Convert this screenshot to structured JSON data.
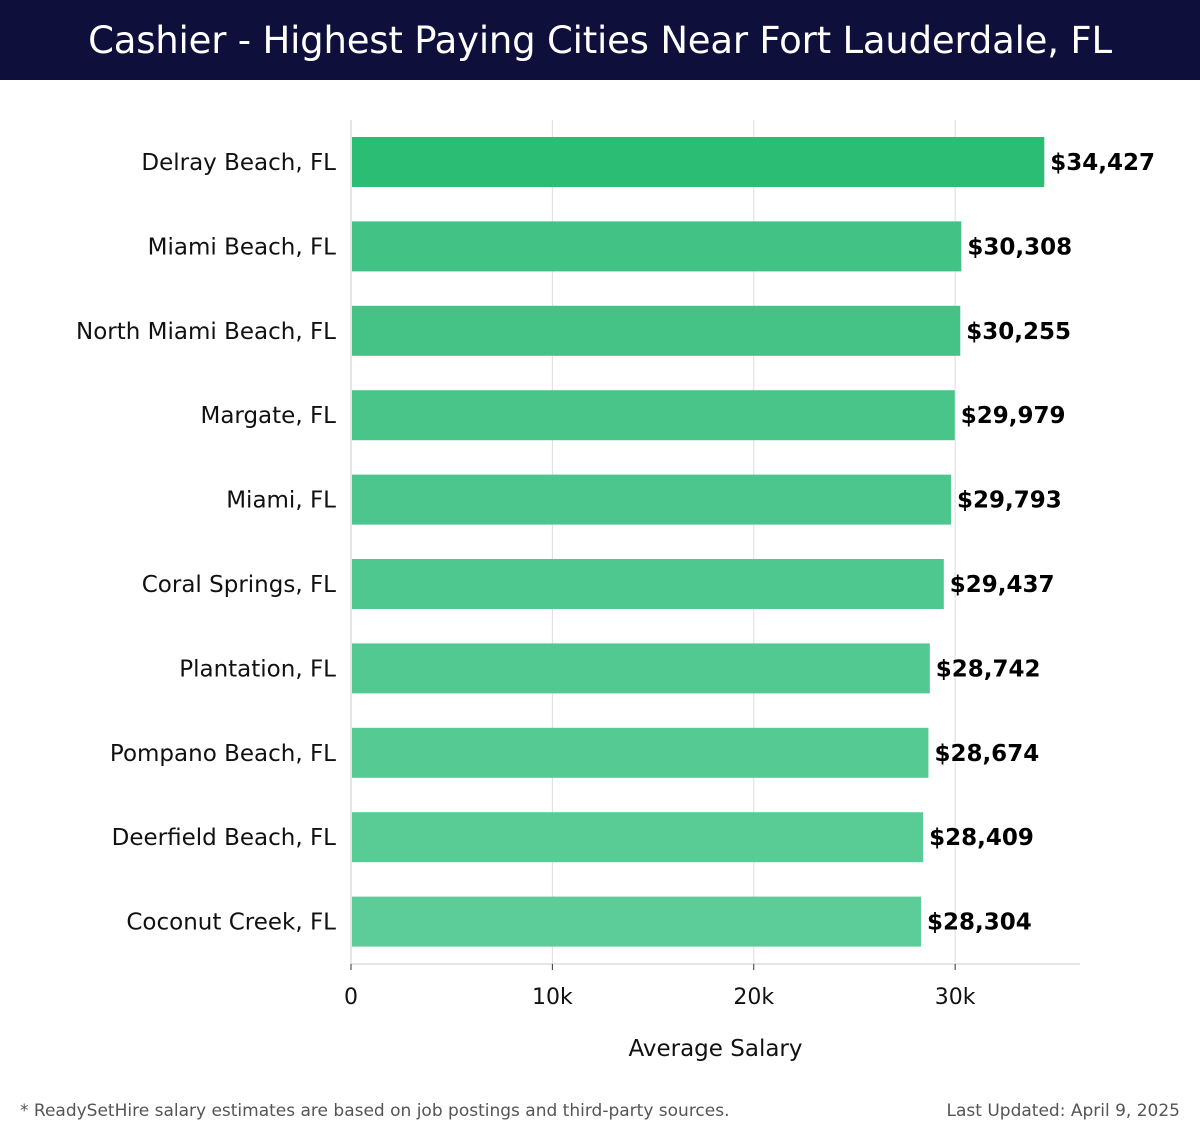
{
  "header": {
    "title": "Cashier - Highest Paying Cities Near Fort Lauderdale, FL"
  },
  "chart_data": {
    "type": "bar",
    "orientation": "horizontal",
    "categories": [
      "Delray Beach, FL",
      "Miami Beach, FL",
      "North Miami Beach, FL",
      "Margate, FL",
      "Miami, FL",
      "Coral Springs, FL",
      "Plantation, FL",
      "Pompano Beach, FL",
      "Deerfield Beach, FL",
      "Coconut Creek, FL"
    ],
    "values": [
      34427,
      30308,
      30255,
      29979,
      29793,
      29437,
      28742,
      28674,
      28409,
      28304
    ],
    "value_labels": [
      "$34,427",
      "$30,308",
      "$30,255",
      "$29,979",
      "$29,793",
      "$29,437",
      "$28,742",
      "$28,674",
      "$28,409",
      "$28,304"
    ],
    "xlabel": "Average Salary",
    "ylabel": "",
    "xlim": [
      0,
      36200
    ],
    "xticks": [
      0,
      10000,
      20000,
      30000
    ],
    "xtick_labels": [
      "0",
      "10k",
      "20k",
      "30k"
    ],
    "grid": true,
    "colors": {
      "top_bar": "#2bbd74",
      "bar_start": "#42c285",
      "bar_end": "#5ccd98",
      "grid": "#dddddd",
      "axis": "#cccccc"
    }
  },
  "footer": {
    "note": "* ReadySetHire salary estimates are based on job postings and third-party sources.",
    "updated": "Last Updated: April 9, 2025"
  }
}
